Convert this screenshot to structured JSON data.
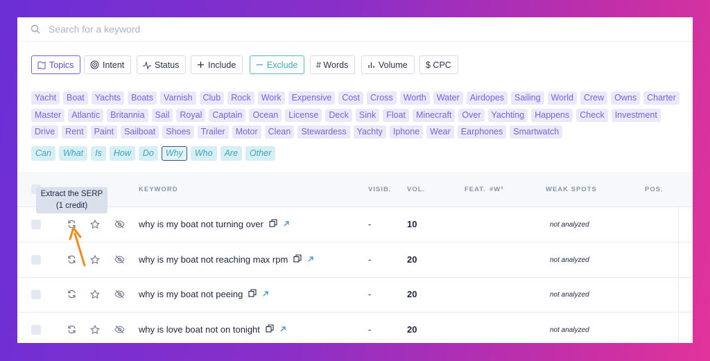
{
  "search": {
    "placeholder": "Search for a keyword"
  },
  "filters": [
    {
      "label": "Topics",
      "selected": true
    },
    {
      "label": "Intent"
    },
    {
      "label": "Status"
    },
    {
      "label": "Include"
    },
    {
      "label": "Exclude",
      "selected": true
    },
    {
      "label": "# Words"
    },
    {
      "label": "Volume"
    },
    {
      "label": "$ CPC"
    }
  ],
  "topics": [
    "Yacht",
    "Boat",
    "Yachts",
    "Boats",
    "Varnish",
    "Club",
    "Rock",
    "Work",
    "Expensive",
    "Cost",
    "Cross",
    "Worth",
    "Water",
    "Airdopes",
    "Sailing",
    "World",
    "Crew",
    "Owns",
    "Charter",
    "Master",
    "Atlantic",
    "Britannia",
    "Sail",
    "Royal",
    "Captain",
    "Ocean",
    "License",
    "Deck",
    "Sink",
    "Float",
    "Minecraft",
    "Over",
    "Yachting",
    "Happens",
    "Check",
    "Investment",
    "Drive",
    "Rent",
    "Paint",
    "Sailboat",
    "Shoes",
    "Trailer",
    "Motor",
    "Clean",
    "Stewardess",
    "Yachty",
    "Iphone",
    "Wear",
    "Earphones",
    "Smartwatch"
  ],
  "questions": [
    {
      "label": "Can"
    },
    {
      "label": "What"
    },
    {
      "label": "Is"
    },
    {
      "label": "How"
    },
    {
      "label": "Do"
    },
    {
      "label": "Why",
      "selected": true
    },
    {
      "label": "Who"
    },
    {
      "label": "Are"
    },
    {
      "label": "Other"
    }
  ],
  "table": {
    "headers": {
      "keyword": "KEYWORD",
      "visibility": "VISIB.",
      "volume": "VOL.",
      "features": "FEAT.",
      "words": "#W³",
      "weak_spots": "WEAK SPOTS",
      "position": "POS."
    },
    "rows": [
      {
        "keyword": "why is my boat not turning over",
        "visibility": "-",
        "volume": 10,
        "weak_spots": "not analyzed"
      },
      {
        "keyword": "why is my boat not reaching max rpm",
        "visibility": "-",
        "volume": 20,
        "weak_spots": "not analyzed"
      },
      {
        "keyword": "why is my boat not peeing",
        "visibility": "-",
        "volume": 20,
        "weak_spots": "not analyzed"
      },
      {
        "keyword": "why is love boat not on tonight",
        "visibility": "-",
        "volume": 20,
        "weak_spots": "not analyzed"
      }
    ]
  },
  "tooltip": {
    "title": "Extract the SERP",
    "note": "(1 credit)"
  }
}
